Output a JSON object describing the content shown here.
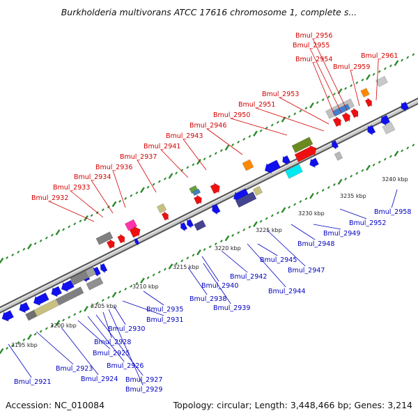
{
  "title": "Burkholderia multivorans ATCC 17616 chromosome 1, complete s...",
  "footer": {
    "accession": "Accession: NC_010084",
    "summary": "Topology: circular; Length: 3,448,466 bp; Genes: 3,214"
  },
  "colors": {
    "backbone": "#8a8a8a",
    "top_labels": "#d40000",
    "bottom_labels": "#0000c0",
    "ruler_ticks": "#2a8a2a",
    "gene_blue": "#1010ee",
    "gene_red": "#ee1010"
  },
  "kbp_labels": [
    "3195 kbp",
    "3200 kbp",
    "3205 kbp",
    "3210 kbp",
    "3215 kbp",
    "3220 kbp",
    "3225 kbp",
    "3230 kbp",
    "3235 kbp",
    "3240 kbp"
  ],
  "top_gene_labels": [
    "Bmul_2932",
    "Bmul_2933",
    "Bmul_2934",
    "Bmul_2936",
    "Bmul_2937",
    "Bmul_2941",
    "Bmul_2943",
    "Bmul_2946",
    "Bmul_2950",
    "Bmul_2951",
    "Bmul_2953",
    "Bmul_2954",
    "Bmul_2955",
    "Bmul_2956",
    "Bmul_2959",
    "Bmul_2961"
  ],
  "bottom_gene_labels": [
    "Bmul_2921",
    "Bmul_2923",
    "Bmul_2924",
    "Bmul_2925",
    "Bmul_2926",
    "Bmul_2927",
    "Bmul_2928",
    "Bmul_2929",
    "Bmul_2930",
    "Bmul_2931",
    "Bmul_2935",
    "Bmul_2938",
    "Bmul_2939",
    "Bmul_2940",
    "Bmul_2942",
    "Bmul_2944",
    "Bmul_2945",
    "Bmul_2947",
    "Bmul_2948",
    "Bmul_2949",
    "Bmul_2952",
    "Bmul_2958"
  ]
}
